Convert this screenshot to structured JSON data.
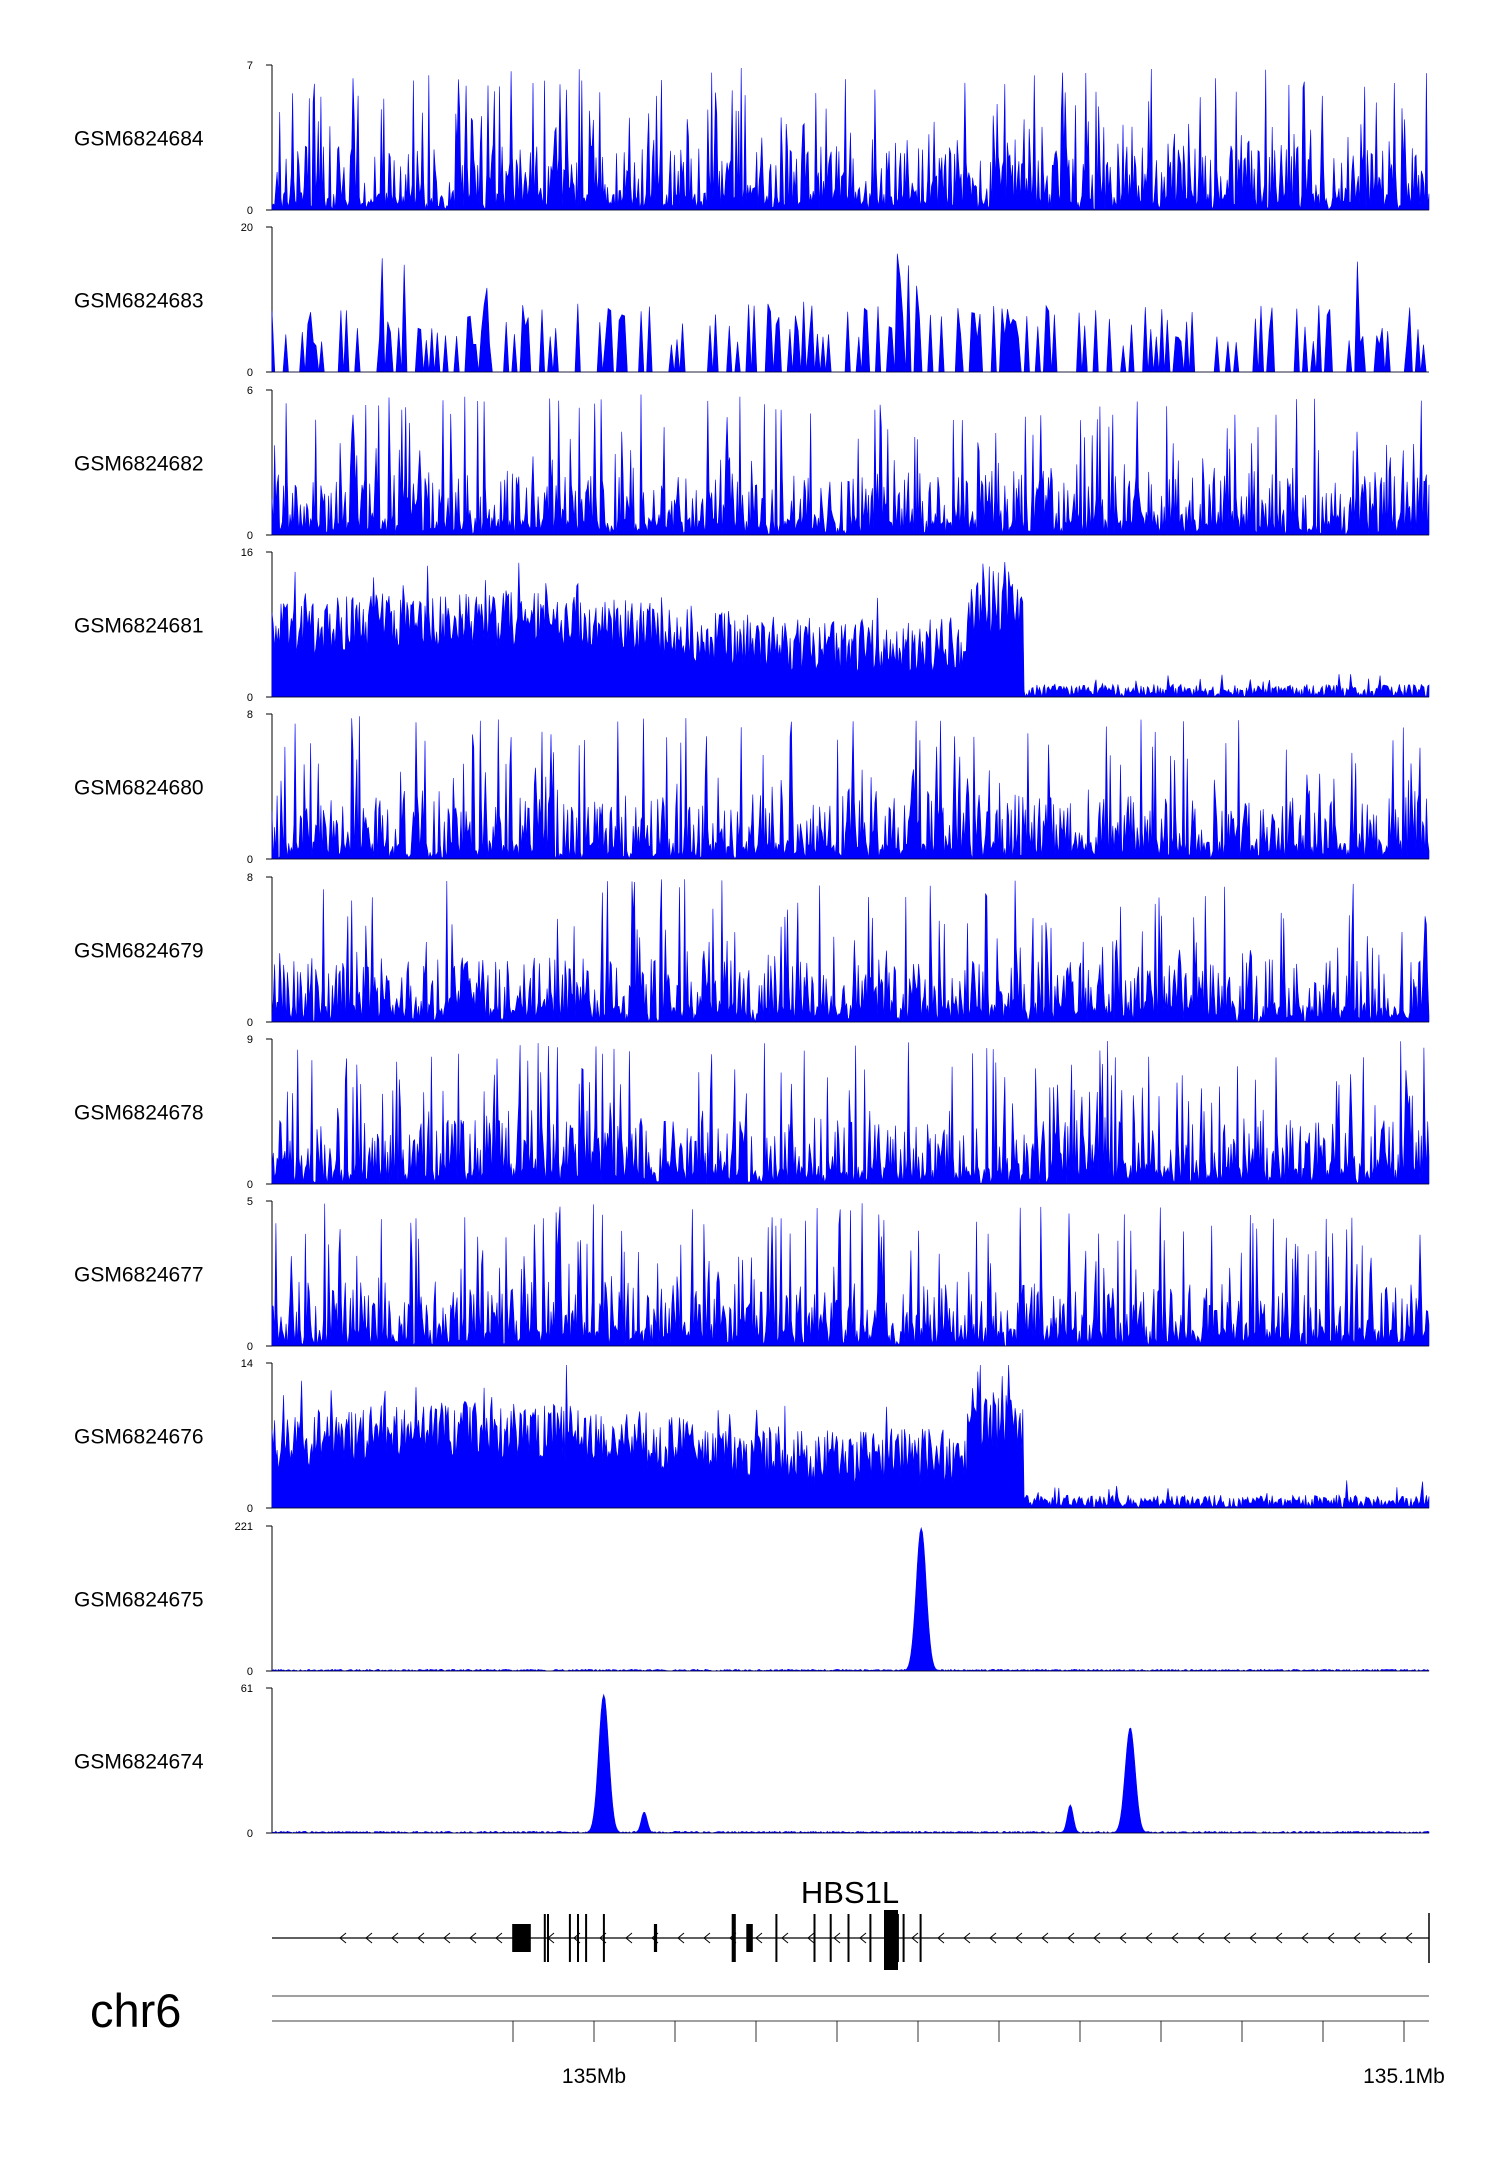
{
  "chart_data": {
    "type": "area",
    "chromosome": "chr6",
    "x_axis": {
      "ticks": [
        {
          "value": "134.99Mb",
          "label": ""
        },
        {
          "value": "135.00Mb",
          "label": "135Mb"
        },
        {
          "value": "135.01Mb",
          "label": ""
        },
        {
          "value": "135.02Mb",
          "label": ""
        },
        {
          "value": "135.03Mb",
          "label": ""
        },
        {
          "value": "135.04Mb",
          "label": ""
        },
        {
          "value": "135.05Mb",
          "label": ""
        },
        {
          "value": "135.06Mb",
          "label": ""
        },
        {
          "value": "135.07Mb",
          "label": ""
        },
        {
          "value": "135.08Mb",
          "label": ""
        },
        {
          "value": "135.09Mb",
          "label": ""
        },
        {
          "value": "135.10Mb",
          "label": "135.1Mb"
        }
      ]
    },
    "color": "#0000ff",
    "tracks": [
      {
        "name": "GSM6824684",
        "ylim": [
          0,
          7
        ],
        "pattern": "spiky",
        "peaks": []
      },
      {
        "name": "GSM6824683",
        "ylim": [
          0,
          20
        ],
        "pattern": "sparse",
        "peaks": []
      },
      {
        "name": "GSM6824682",
        "ylim": [
          0,
          6
        ],
        "pattern": "spiky",
        "peaks": []
      },
      {
        "name": "GSM6824681",
        "ylim": [
          0,
          16
        ],
        "pattern": "drop",
        "peaks": []
      },
      {
        "name": "GSM6824680",
        "ylim": [
          0,
          8
        ],
        "pattern": "spiky",
        "peaks": []
      },
      {
        "name": "GSM6824679",
        "ylim": [
          0,
          8
        ],
        "pattern": "spiky",
        "peaks": []
      },
      {
        "name": "GSM6824678",
        "ylim": [
          0,
          9
        ],
        "pattern": "spiky",
        "peaks": []
      },
      {
        "name": "GSM6824677",
        "ylim": [
          0,
          5
        ],
        "pattern": "spiky",
        "peaks": []
      },
      {
        "name": "GSM6824676",
        "ylim": [
          0,
          14
        ],
        "pattern": "drop",
        "peaks": []
      },
      {
        "name": "GSM6824675",
        "ylim": [
          0,
          221
        ],
        "pattern": "peak",
        "peaks": [
          {
            "pos": 135.0404,
            "height": 221
          }
        ]
      },
      {
        "name": "GSM6824674",
        "ylim": [
          0,
          61
        ],
        "pattern": "peak",
        "peaks": [
          {
            "pos": 135.0012,
            "height": 59
          },
          {
            "pos": 135.0062,
            "height": 9
          },
          {
            "pos": 135.0588,
            "height": 12
          },
          {
            "pos": 135.0654,
            "height": 8
          },
          {
            "pos": 135.0662,
            "height": 45
          }
        ]
      }
    ],
    "gene": {
      "name": "HBS1L",
      "strand": "-",
      "exons": [
        {
          "start": 134.9899,
          "end": 134.9922,
          "level": "utr"
        },
        {
          "start": 134.9938,
          "end": 134.994,
          "level": "thin"
        },
        {
          "start": 134.9942,
          "end": 134.9944,
          "level": "thin"
        },
        {
          "start": 134.9969,
          "end": 134.9971,
          "level": "thin"
        },
        {
          "start": 134.9979,
          "end": 134.9981,
          "level": "thin"
        },
        {
          "start": 134.9989,
          "end": 134.9991,
          "level": "thin"
        },
        {
          "start": 135.0011,
          "end": 135.0013,
          "level": "thin"
        },
        {
          "start": 135.0074,
          "end": 135.0078,
          "level": "cds"
        },
        {
          "start": 135.017,
          "end": 135.0175,
          "level": "thin"
        },
        {
          "start": 135.0188,
          "end": 135.0196,
          "level": "cds"
        },
        {
          "start": 135.0224,
          "end": 135.0226,
          "level": "thin"
        },
        {
          "start": 135.0271,
          "end": 135.0273,
          "level": "thin"
        },
        {
          "start": 135.0291,
          "end": 135.0293,
          "level": "thin"
        },
        {
          "start": 135.0313,
          "end": 135.0315,
          "level": "thin"
        },
        {
          "start": 135.034,
          "end": 135.0342,
          "level": "thin"
        },
        {
          "start": 135.0374,
          "end": 135.0376,
          "level": "thin"
        },
        {
          "start": 135.0381,
          "end": 135.0383,
          "level": "thin"
        },
        {
          "start": 135.0402,
          "end": 135.0404,
          "level": "thin"
        }
      ]
    }
  }
}
